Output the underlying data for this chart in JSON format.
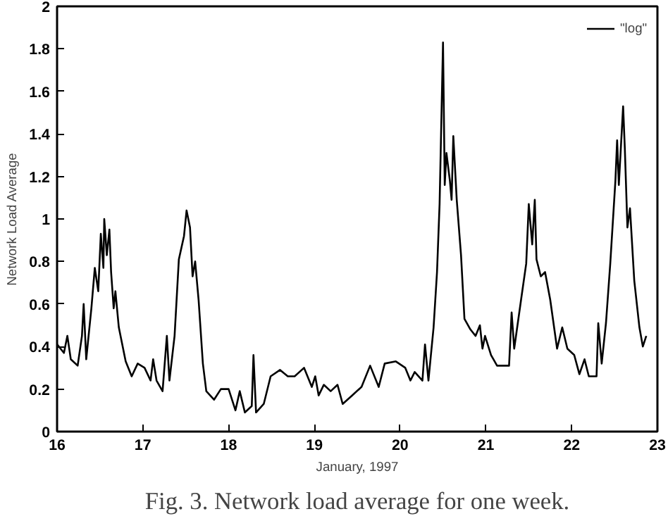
{
  "chart_data": {
    "type": "line",
    "xlabel": "January, 1997",
    "ylabel": "Network Load Average",
    "annotations": [
      "Fig. 3. Network load average for one week."
    ],
    "xlim": [
      16,
      23
    ],
    "ylim": [
      0,
      2
    ],
    "xticks": [
      16,
      17,
      18,
      19,
      20,
      21,
      22,
      23
    ],
    "yticks": [
      0,
      0.2,
      0.4,
      0.6,
      0.8,
      1,
      1.2,
      1.4,
      1.6,
      1.8,
      2
    ],
    "grid": false,
    "legend": "top right",
    "marker": "none",
    "line_style": "solid",
    "series": [
      {
        "name": "\"log\"",
        "color": "#000000",
        "x": [
          16.0,
          16.08,
          16.12,
          16.16,
          16.24,
          16.29,
          16.31,
          16.34,
          16.4,
          16.44,
          16.48,
          16.51,
          16.54,
          16.55,
          16.58,
          16.61,
          16.63,
          16.66,
          16.68,
          16.72,
          16.8,
          16.87,
          16.94,
          17.02,
          17.09,
          17.12,
          17.16,
          17.23,
          17.28,
          17.31,
          17.37,
          17.42,
          17.48,
          17.51,
          17.55,
          17.58,
          17.61,
          17.65,
          17.7,
          17.74,
          17.83,
          17.91,
          18.0,
          18.08,
          18.13,
          18.19,
          18.27,
          18.29,
          18.32,
          18.41,
          18.49,
          18.6,
          18.69,
          18.77,
          18.88,
          18.97,
          19.01,
          19.05,
          19.11,
          19.19,
          19.27,
          19.33,
          19.44,
          19.55,
          19.65,
          19.75,
          19.82,
          19.95,
          20.06,
          20.12,
          20.17,
          20.26,
          20.29,
          20.33,
          20.39,
          20.43,
          20.46,
          20.5,
          20.52,
          20.54,
          20.58,
          20.6,
          20.62,
          20.66,
          20.71,
          20.75,
          20.82,
          20.88,
          20.93,
          20.96,
          20.99,
          21.06,
          21.13,
          21.21,
          21.27,
          21.3,
          21.33,
          21.41,
          21.47,
          21.5,
          21.54,
          21.57,
          21.59,
          21.64,
          21.69,
          21.75,
          21.83,
          21.89,
          21.95,
          22.03,
          22.09,
          22.15,
          22.2,
          22.29,
          22.31,
          22.35,
          22.4,
          22.45,
          22.51,
          22.53,
          22.55,
          22.6,
          22.62,
          22.65,
          22.68,
          22.73,
          22.79,
          22.83,
          22.87
        ],
        "values": [
          0.41,
          0.37,
          0.45,
          0.34,
          0.31,
          0.45,
          0.6,
          0.34,
          0.58,
          0.77,
          0.66,
          0.93,
          0.77,
          1.0,
          0.83,
          0.95,
          0.75,
          0.58,
          0.66,
          0.49,
          0.33,
          0.26,
          0.32,
          0.3,
          0.24,
          0.34,
          0.24,
          0.19,
          0.45,
          0.24,
          0.45,
          0.81,
          0.92,
          1.04,
          0.96,
          0.73,
          0.8,
          0.62,
          0.32,
          0.19,
          0.15,
          0.2,
          0.2,
          0.1,
          0.19,
          0.09,
          0.12,
          0.36,
          0.09,
          0.13,
          0.26,
          0.29,
          0.26,
          0.26,
          0.3,
          0.21,
          0.26,
          0.17,
          0.22,
          0.19,
          0.22,
          0.13,
          0.17,
          0.21,
          0.31,
          0.21,
          0.32,
          0.33,
          0.3,
          0.24,
          0.28,
          0.24,
          0.41,
          0.24,
          0.49,
          0.75,
          1.07,
          1.83,
          1.16,
          1.31,
          1.18,
          1.09,
          1.39,
          1.09,
          0.83,
          0.53,
          0.48,
          0.45,
          0.5,
          0.39,
          0.45,
          0.36,
          0.31,
          0.31,
          0.31,
          0.56,
          0.39,
          0.62,
          0.79,
          1.07,
          0.88,
          1.09,
          0.81,
          0.73,
          0.75,
          0.62,
          0.39,
          0.49,
          0.39,
          0.36,
          0.27,
          0.34,
          0.26,
          0.26,
          0.51,
          0.32,
          0.51,
          0.79,
          1.18,
          1.37,
          1.16,
          1.53,
          1.33,
          0.96,
          1.05,
          0.71,
          0.49,
          0.4,
          0.45
        ]
      }
    ]
  }
}
